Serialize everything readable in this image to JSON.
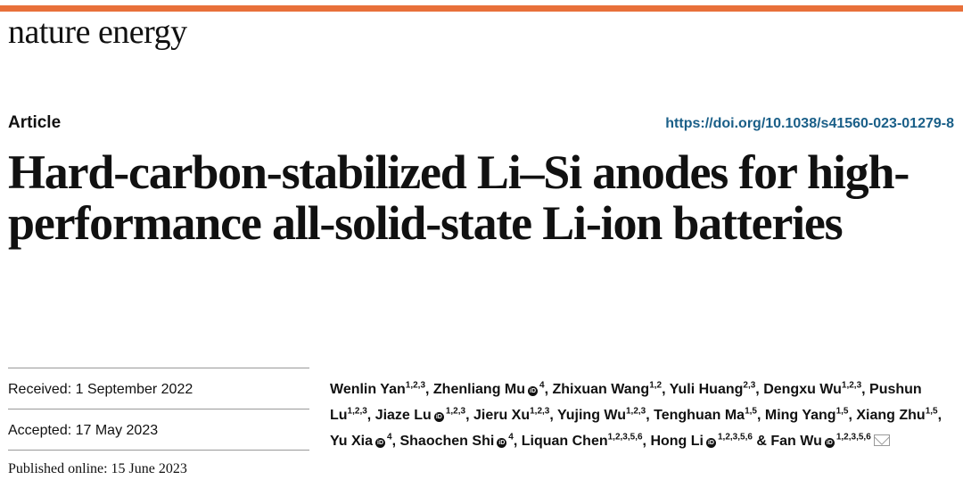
{
  "colors": {
    "brand_bar": "#e8703a",
    "doi_link": "#1a5f88",
    "orcid_badge": "#111111"
  },
  "header": {
    "journal": "nature energy"
  },
  "article": {
    "type": "Article",
    "doi": "https://doi.org/10.1038/s41560-023-01279-8",
    "title": "Hard-carbon-stabilized Li–Si anodes for high-performance all-solid-state Li-ion batteries"
  },
  "dates": {
    "received": "Received: 1 September 2022",
    "accepted": "Accepted: 17 May 2023",
    "published": "Published online: 15 June 2023"
  },
  "authors": [
    {
      "name": "Wenlin Yan",
      "aff": "1,2,3",
      "orcid": false
    },
    {
      "name": "Zhenliang Mu",
      "aff": "4",
      "orcid": true
    },
    {
      "name": "Zhixuan Wang",
      "aff": "1,2",
      "orcid": false
    },
    {
      "name": "Yuli Huang",
      "aff": "2,3",
      "orcid": false
    },
    {
      "name": "Dengxu Wu",
      "aff": "1,2,3",
      "orcid": false
    },
    {
      "name": "Pushun Lu",
      "aff": "1,2,3",
      "orcid": false
    },
    {
      "name": "Jiaze Lu",
      "aff": "1,2,3",
      "orcid": true
    },
    {
      "name": "Jieru Xu",
      "aff": "1,2,3",
      "orcid": false
    },
    {
      "name": "Yujing Wu",
      "aff": "1,2,3",
      "orcid": false
    },
    {
      "name": "Tenghuan Ma",
      "aff": "1,5",
      "orcid": false
    },
    {
      "name": "Ming Yang",
      "aff": "1,5",
      "orcid": false
    },
    {
      "name": "Xiang Zhu",
      "aff": "1,5",
      "orcid": false
    },
    {
      "name": "Yu Xia",
      "aff": "4",
      "orcid": true
    },
    {
      "name": "Shaochen Shi",
      "aff": "4",
      "orcid": true
    },
    {
      "name": "Liquan Chen",
      "aff": "1,2,3,5,6",
      "orcid": false
    },
    {
      "name": "Hong Li",
      "aff": "1,2,3,5,6",
      "orcid": true
    },
    {
      "name": "Fan Wu",
      "aff": "1,2,3,5,6",
      "orcid": true
    }
  ],
  "icons": {
    "orcid": "orcid-icon",
    "contact": "envelope-icon"
  }
}
